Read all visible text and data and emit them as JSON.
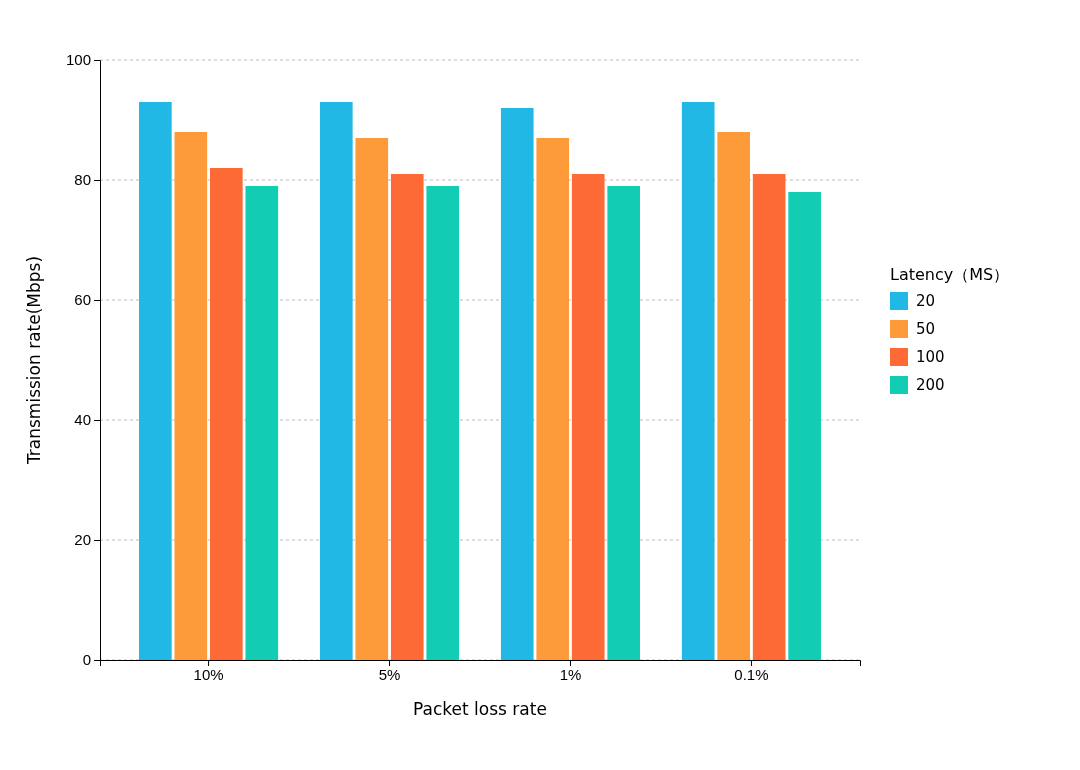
{
  "chart_data": {
    "type": "bar",
    "xlabel": "Packet loss rate",
    "ylabel": "Transmission rate(Mbps)",
    "legend_title": "Latency（MS）",
    "categories": [
      "10%",
      "5%",
      "1%",
      "0.1%"
    ],
    "series": [
      {
        "name": "20",
        "color": "#22b8e6",
        "values": [
          93,
          93,
          92,
          93
        ]
      },
      {
        "name": "50",
        "color": "#fd9a3a",
        "values": [
          88,
          87,
          87,
          88
        ]
      },
      {
        "name": "100",
        "color": "#fe6a35",
        "values": [
          82,
          81,
          81,
          81
        ]
      },
      {
        "name": "200",
        "color": "#12cdb4",
        "values": [
          79,
          79,
          79,
          78
        ]
      }
    ],
    "ylim": [
      0,
      100
    ],
    "yticks": [
      0,
      20,
      40,
      60,
      80,
      100
    ],
    "grid": "y",
    "legend": "right"
  }
}
